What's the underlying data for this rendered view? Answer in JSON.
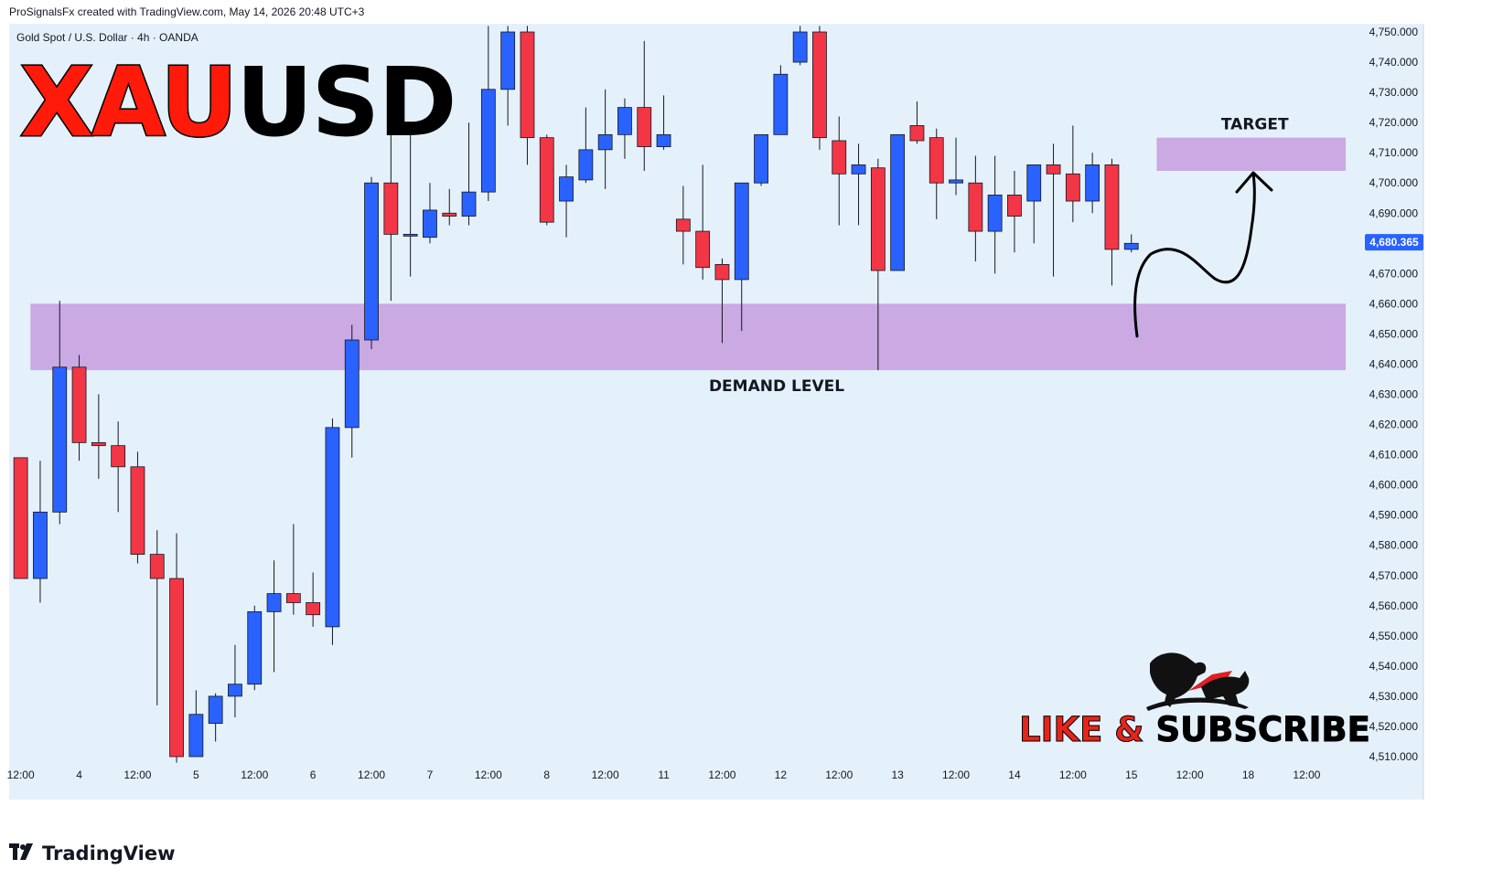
{
  "header": {
    "credit": "ProSignalsFx created with TradingView.com, May 14, 2026 20:48 UTC+3"
  },
  "chart_data": {
    "type": "candlestick",
    "title": "Gold Spot / U.S. Dollar · 4h · OANDA",
    "big_title": {
      "part1": "XAU",
      "part2": "USD"
    },
    "ylim": [
      4505,
      4755
    ],
    "y_ticks": [
      "4,750.000",
      "4,740.000",
      "4,730.000",
      "4,720.000",
      "4,710.000",
      "4,700.000",
      "4,690.000",
      "4,680.000",
      "4,670.000",
      "4,660.000",
      "4,650.000",
      "4,640.000",
      "4,630.000",
      "4,620.000",
      "4,610.000",
      "4,600.000",
      "4,590.000",
      "4,580.000",
      "4,570.000",
      "4,560.000",
      "4,550.000",
      "4,540.000",
      "4,530.000",
      "4,520.000",
      "4,510.000"
    ],
    "y_tick_values": [
      4750,
      4740,
      4730,
      4720,
      4710,
      4700,
      4690,
      4680,
      4670,
      4660,
      4650,
      4640,
      4630,
      4620,
      4610,
      4600,
      4590,
      4580,
      4570,
      4560,
      4550,
      4540,
      4530,
      4520,
      4510
    ],
    "x_labels": [
      {
        "slot": 0.5,
        "label": "12:00"
      },
      {
        "slot": 3.5,
        "label": "4"
      },
      {
        "slot": 6.5,
        "label": "12:00"
      },
      {
        "slot": 9.5,
        "label": "5"
      },
      {
        "slot": 12.5,
        "label": "12:00"
      },
      {
        "slot": 15.5,
        "label": "6"
      },
      {
        "slot": 18.5,
        "label": "12:00"
      },
      {
        "slot": 21.5,
        "label": "7"
      },
      {
        "slot": 24.5,
        "label": "12:00"
      },
      {
        "slot": 27.5,
        "label": "8"
      },
      {
        "slot": 30.5,
        "label": "12:00"
      },
      {
        "slot": 33.5,
        "label": "11"
      },
      {
        "slot": 36.5,
        "label": "12:00"
      },
      {
        "slot": 39.5,
        "label": "12"
      },
      {
        "slot": 42.5,
        "label": "12:00"
      },
      {
        "slot": 45.5,
        "label": "13"
      },
      {
        "slot": 48.5,
        "label": "12:00"
      },
      {
        "slot": 51.5,
        "label": "14"
      },
      {
        "slot": 54.5,
        "label": "12:00"
      },
      {
        "slot": 57.5,
        "label": "15"
      },
      {
        "slot": 60.5,
        "label": "12:00"
      },
      {
        "slot": 63.5,
        "label": "18"
      },
      {
        "slot": 66.5,
        "label": "12:00"
      }
    ],
    "candles": [
      {
        "o": 4609,
        "h": 4609,
        "l": 4569,
        "c": 4569
      },
      {
        "o": 4569,
        "h": 4608,
        "l": 4561,
        "c": 4591
      },
      {
        "o": 4591,
        "h": 4661,
        "l": 4587,
        "c": 4639
      },
      {
        "o": 4639,
        "h": 4643,
        "l": 4608,
        "c": 4614
      },
      {
        "o": 4614,
        "h": 4630,
        "l": 4602,
        "c": 4613
      },
      {
        "o": 4613,
        "h": 4621,
        "l": 4591,
        "c": 4606
      },
      {
        "o": 4606,
        "h": 4611,
        "l": 4574,
        "c": 4577
      },
      {
        "o": 4577,
        "h": 4585,
        "l": 4527,
        "c": 4569
      },
      {
        "o": 4569,
        "h": 4584,
        "l": 4508,
        "c": 4510
      },
      {
        "o": 4510,
        "h": 4532,
        "l": 4510,
        "c": 4524
      },
      {
        "o": 4521,
        "h": 4531,
        "l": 4515,
        "c": 4530
      },
      {
        "o": 4530,
        "h": 4547,
        "l": 4523,
        "c": 4534
      },
      {
        "o": 4534,
        "h": 4560,
        "l": 4532,
        "c": 4558
      },
      {
        "o": 4558,
        "h": 4575,
        "l": 4538,
        "c": 4564
      },
      {
        "o": 4564,
        "h": 4587,
        "l": 4557,
        "c": 4561
      },
      {
        "o": 4561,
        "h": 4571,
        "l": 4553,
        "c": 4557
      },
      {
        "o": 4553,
        "h": 4622,
        "l": 4547,
        "c": 4619
      },
      {
        "o": 4619,
        "h": 4653,
        "l": 4609,
        "c": 4648
      },
      {
        "o": 4648,
        "h": 4702,
        "l": 4645,
        "c": 4700
      },
      {
        "o": 4700,
        "h": 4722,
        "l": 4661,
        "c": 4683
      },
      {
        "o": 4683,
        "h": 4718,
        "l": 4669,
        "c": 4683
      },
      {
        "o": 4682,
        "h": 4700,
        "l": 4680,
        "c": 4691
      },
      {
        "o": 4690,
        "h": 4698,
        "l": 4686,
        "c": 4689
      },
      {
        "o": 4689,
        "h": 4720,
        "l": 4686,
        "c": 4697
      },
      {
        "o": 4697,
        "h": 4752,
        "l": 4694,
        "c": 4731
      },
      {
        "o": 4731,
        "h": 4752,
        "l": 4719,
        "c": 4750
      },
      {
        "o": 4750,
        "h": 4752,
        "l": 4706,
        "c": 4715
      },
      {
        "o": 4715,
        "h": 4716,
        "l": 4686,
        "c": 4687
      },
      {
        "o": 4694,
        "h": 4706,
        "l": 4682,
        "c": 4702
      },
      {
        "o": 4701,
        "h": 4725,
        "l": 4700,
        "c": 4711
      },
      {
        "o": 4711,
        "h": 4731,
        "l": 4698,
        "c": 4716
      },
      {
        "o": 4716,
        "h": 4728,
        "l": 4708,
        "c": 4725
      },
      {
        "o": 4725,
        "h": 4747,
        "l": 4704,
        "c": 4712
      },
      {
        "o": 4712,
        "h": 4729,
        "l": 4711,
        "c": 4716
      },
      {
        "o": 4688,
        "h": 4699,
        "l": 4673,
        "c": 4684
      },
      {
        "o": 4684,
        "h": 4706,
        "l": 4668,
        "c": 4672
      },
      {
        "o": 4673,
        "h": 4675,
        "l": 4647,
        "c": 4668
      },
      {
        "o": 4668,
        "h": 4700,
        "l": 4651,
        "c": 4700
      },
      {
        "o": 4700,
        "h": 4716,
        "l": 4699,
        "c": 4716
      },
      {
        "o": 4716,
        "h": 4739,
        "l": 4716,
        "c": 4736
      },
      {
        "o": 4740,
        "h": 4752,
        "l": 4739,
        "c": 4750
      },
      {
        "o": 4750,
        "h": 4752,
        "l": 4711,
        "c": 4715
      },
      {
        "o": 4714,
        "h": 4722,
        "l": 4686,
        "c": 4703
      },
      {
        "o": 4703,
        "h": 4713,
        "l": 4686,
        "c": 4706
      },
      {
        "o": 4705,
        "h": 4708,
        "l": 4638,
        "c": 4671
      },
      {
        "o": 4671,
        "h": 4716,
        "l": 4671,
        "c": 4716
      },
      {
        "o": 4719,
        "h": 4727,
        "l": 4713,
        "c": 4714
      },
      {
        "o": 4715,
        "h": 4718,
        "l": 4688,
        "c": 4700
      },
      {
        "o": 4700,
        "h": 4715,
        "l": 4696,
        "c": 4701
      },
      {
        "o": 4700,
        "h": 4709,
        "l": 4674,
        "c": 4684
      },
      {
        "o": 4684,
        "h": 4709,
        "l": 4670,
        "c": 4696
      },
      {
        "o": 4696,
        "h": 4704,
        "l": 4677,
        "c": 4689
      },
      {
        "o": 4694,
        "h": 4706,
        "l": 4680,
        "c": 4706
      },
      {
        "o": 4706,
        "h": 4713,
        "l": 4669,
        "c": 4703
      },
      {
        "o": 4703,
        "h": 4719,
        "l": 4687,
        "c": 4694
      },
      {
        "o": 4694,
        "h": 4710,
        "l": 4690,
        "c": 4706
      },
      {
        "o": 4706,
        "h": 4708,
        "l": 4666,
        "c": 4678
      },
      {
        "o": 4678,
        "h": 4683,
        "l": 4677,
        "c": 4680
      }
    ],
    "current_price": "4,680.365",
    "zones": [
      {
        "name": "demand",
        "label": "DEMAND LEVEL",
        "top": 4660,
        "bottom": 4638,
        "slot_start": 1.0,
        "slot_end": 68.5
      },
      {
        "name": "target",
        "label": "TARGET",
        "top": 4715,
        "bottom": 4704,
        "slot_start": 58.8,
        "slot_end": 68.5
      }
    ],
    "colors": {
      "bull": "#2962ff",
      "bear": "#f23645",
      "bg": "#e5f1fa",
      "zone": "#cba9e2",
      "axis_text": "#131722",
      "price_tag": "#2962ff",
      "title_red": "#ff1a0a"
    },
    "grid": false
  },
  "overlay": {
    "cta": "LIKE & SUBSCRIBE",
    "mascot_icon": "bull-bear-icon"
  },
  "footer": {
    "brand": "TradingView",
    "brand_icon": "tradingview-logo-icon"
  }
}
